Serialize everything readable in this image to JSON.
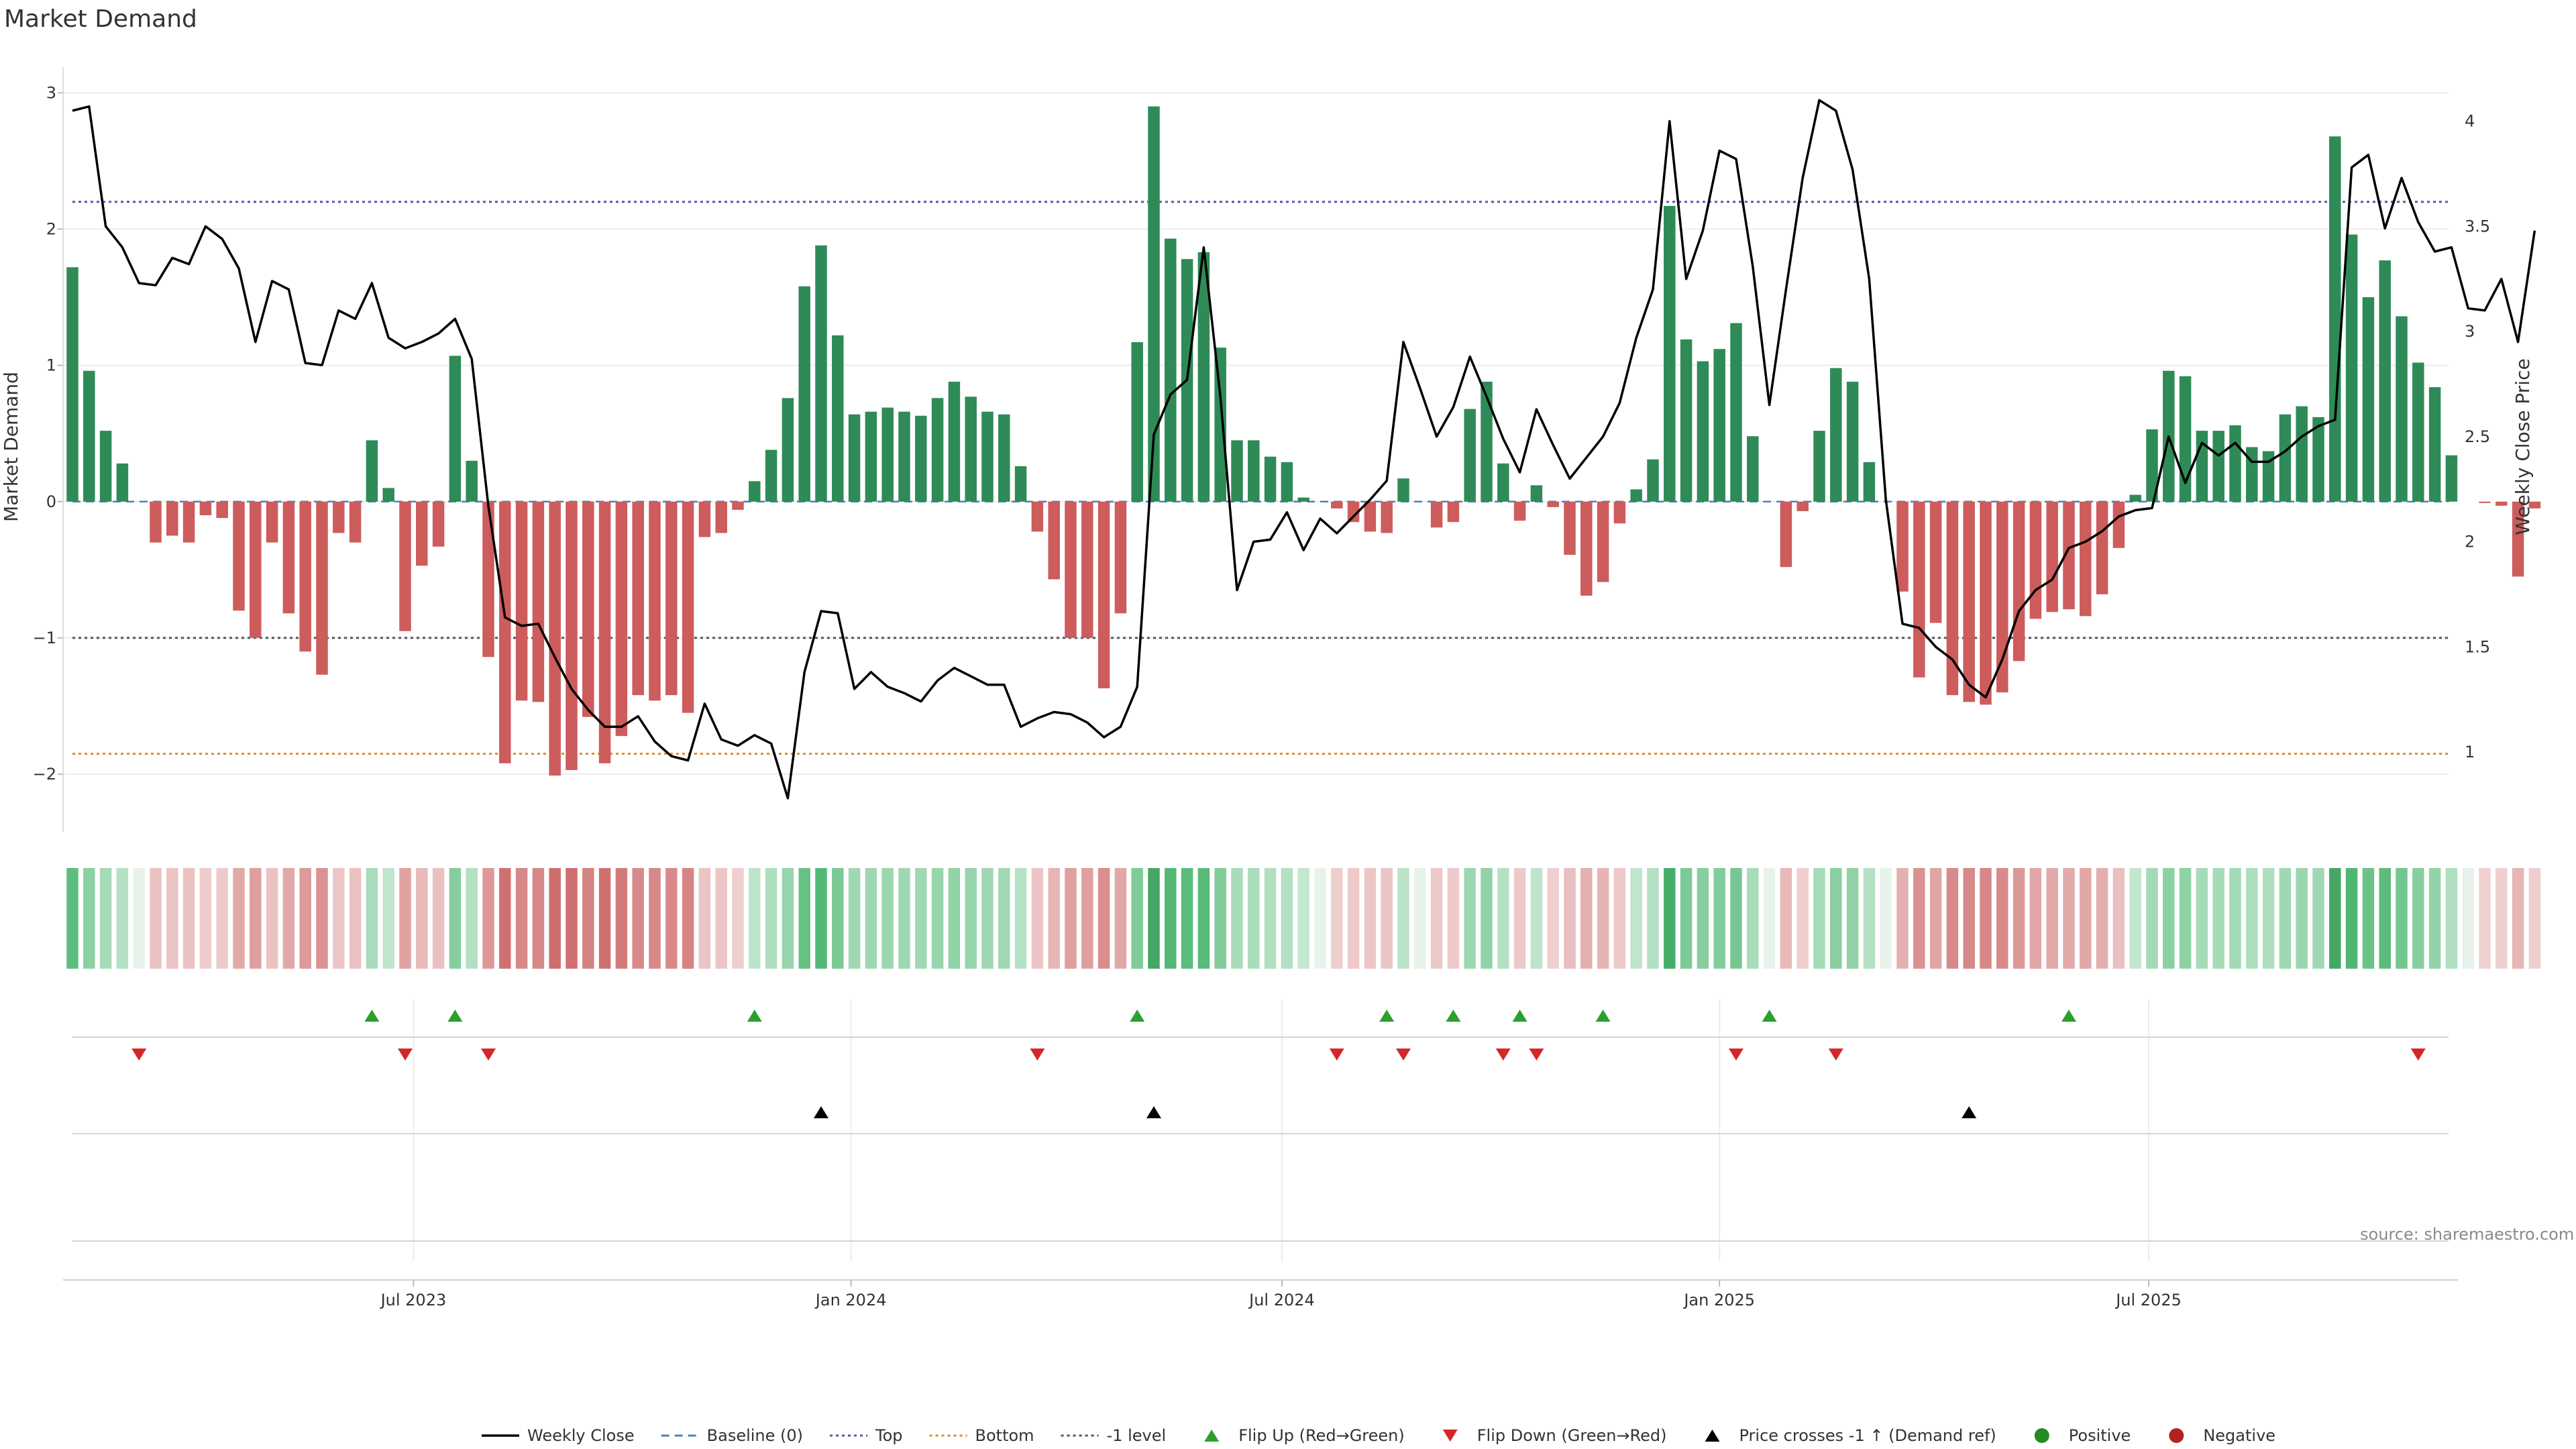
{
  "title": "Market Demand",
  "source": "source: sharemaestro.com",
  "colors": {
    "positive_bar": "#2e8b57",
    "negative_bar": "#cd5c5c",
    "price_line": "#000000",
    "top_line": "#5555aa",
    "bottom_line": "#e08a2a",
    "minus1_line": "#555555",
    "flip_up": "#2ca02c",
    "flip_down": "#d62728",
    "cross_marker": "#000000",
    "positive_dot": "#228b22",
    "negative_dot": "#b22222"
  },
  "chart_data": {
    "type": "bar",
    "title": "Market Demand",
    "ylabel": "Market Demand",
    "y2label": "Weekly Close Price",
    "ylim": [
      -2.3,
      3.1
    ],
    "y2lim": [
      0.7,
      4.2
    ],
    "yticks": [
      {
        "v": -2,
        "label": "−2"
      },
      {
        "v": -1,
        "label": "−1"
      },
      {
        "v": 0,
        "label": "0"
      },
      {
        "v": 1,
        "label": "1"
      },
      {
        "v": 2,
        "label": "2"
      },
      {
        "v": 3,
        "label": "3"
      }
    ],
    "y2ticks": [
      {
        "v": 1,
        "label": "1"
      },
      {
        "v": 1.5,
        "label": "1.5"
      },
      {
        "v": 2,
        "label": "2"
      },
      {
        "v": 2.5,
        "label": "2.5"
      },
      {
        "v": 3,
        "label": "3"
      },
      {
        "v": 3.5,
        "label": "3.5"
      },
      {
        "v": 4,
        "label": "4"
      }
    ],
    "xticks": [
      {
        "week": 20.5,
        "label": "Jul 2023"
      },
      {
        "week": 46.8,
        "label": "Jan 2024"
      },
      {
        "week": 72.7,
        "label": "Jul 2024"
      },
      {
        "week": 99,
        "label": "Jan 2025"
      },
      {
        "week": 124.8,
        "label": "Jul 2025"
      }
    ],
    "reference_lines": {
      "baseline": 0,
      "top": 2.2,
      "bottom": -1.85,
      "minus1": -1
    },
    "demand": [
      1.72,
      0.96,
      0.52,
      0.28,
      0,
      -0.3,
      -0.25,
      -0.3,
      -0.1,
      -0.12,
      -0.8,
      -1,
      -0.3,
      -0.82,
      -1.1,
      -1.27,
      -0.23,
      -0.3,
      0.45,
      0.1,
      -0.95,
      -0.47,
      -0.33,
      1.07,
      0.3,
      -1.14,
      -1.92,
      -1.46,
      -1.47,
      -2.01,
      -1.97,
      -1.58,
      -1.92,
      -1.72,
      -1.42,
      -1.46,
      -1.42,
      -1.55,
      -0.26,
      -0.23,
      -0.06,
      0.15,
      0.38,
      0.76,
      1.58,
      1.88,
      1.22,
      0.64,
      0.66,
      0.69,
      0.66,
      0.63,
      0.76,
      0.88,
      0.77,
      0.66,
      0.64,
      0.26,
      -0.22,
      -0.57,
      -1,
      -1,
      -1.37,
      -0.82,
      1.17,
      2.9,
      1.93,
      1.78,
      1.83,
      1.13,
      0.45,
      0.45,
      0.33,
      0.29,
      0.03,
      0,
      -0.05,
      -0.15,
      -0.22,
      -0.23,
      0.17,
      0,
      -0.19,
      -0.15,
      0.68,
      0.88,
      0.28,
      -0.14,
      0.12,
      -0.04,
      -0.39,
      -0.69,
      -0.59,
      -0.16,
      0.09,
      0.31,
      2.17,
      1.19,
      1.03,
      1.12,
      1.31,
      0.48,
      0,
      -0.48,
      -0.07,
      0.52,
      0.98,
      0.88,
      0.29,
      0,
      -0.66,
      -1.29,
      -0.89,
      -1.42,
      -1.47,
      -1.49,
      -1.4,
      -1.17,
      -0.86,
      -0.81,
      -0.79,
      -0.84,
      -0.68,
      -0.34,
      0.05,
      0.53,
      0.96,
      0.92,
      0.52,
      0.52,
      0.56,
      0.4,
      0.37,
      0.64,
      0.7,
      0.62,
      2.68,
      1.96,
      1.5,
      1.77,
      1.36,
      1.02,
      0.84,
      0.34,
      0,
      -0.01,
      -0.03,
      -0.55,
      -0.05
    ],
    "price": [
      4.05,
      4.07,
      3.5,
      3.4,
      3.23,
      3.22,
      3.35,
      3.32,
      3.5,
      3.44,
      3.3,
      2.95,
      3.24,
      3.2,
      2.85,
      2.84,
      3.1,
      3.06,
      3.23,
      2.97,
      2.92,
      2.95,
      2.99,
      3.06,
      2.87,
      2.17,
      1.64,
      1.6,
      1.61,
      1.45,
      1.3,
      1.2,
      1.12,
      1.12,
      1.17,
      1.05,
      0.98,
      0.96,
      1.23,
      1.06,
      1.03,
      1.08,
      1.04,
      0.78,
      1.38,
      1.67,
      1.66,
      1.3,
      1.38,
      1.31,
      1.28,
      1.24,
      1.34,
      1.4,
      1.36,
      1.32,
      1.32,
      1.12,
      1.16,
      1.19,
      1.18,
      1.14,
      1.07,
      1.12,
      1.31,
      2.51,
      2.7,
      2.77,
      3.4,
      2.69,
      1.77,
      2,
      2.01,
      2.14,
      1.96,
      2.11,
      2.04,
      2.12,
      2.2,
      2.29,
      2.95,
      2.73,
      2.5,
      2.64,
      2.88,
      2.69,
      2.49,
      2.33,
      2.63,
      2.46,
      2.3,
      2.4,
      2.5,
      2.66,
      2.97,
      3.2,
      4.0,
      3.25,
      3.48,
      3.86,
      3.82,
      3.31,
      2.65,
      3.2,
      3.73,
      4.1,
      4.05,
      3.77,
      3.25,
      2.2,
      1.61,
      1.59,
      1.5,
      1.44,
      1.32,
      1.26,
      1.44,
      1.67,
      1.77,
      1.82,
      1.97,
      2,
      2.05,
      2.12,
      2.15,
      2.16,
      2.5,
      2.28,
      2.47,
      2.41,
      2.47,
      2.38,
      2.38,
      2.43,
      2.5,
      2.55,
      2.58,
      3.78,
      3.84,
      3.49,
      3.73,
      3.52,
      3.38,
      3.4,
      3.11,
      3.1,
      3.25,
      2.95,
      3.48
    ],
    "flip_up_weeks": [
      18,
      23,
      41,
      64,
      79,
      83,
      87,
      92,
      102,
      120
    ],
    "flip_down_weeks": [
      4,
      20,
      25,
      58,
      76,
      80,
      86,
      88,
      100,
      106,
      141
    ],
    "price_cross_weeks": [
      45,
      65,
      114
    ],
    "legend": [
      {
        "label": "Weekly Close",
        "kind": "line-solid"
      },
      {
        "label": "Baseline (0)",
        "kind": "line-dash-blue"
      },
      {
        "label": "Top",
        "kind": "line-dot-purple"
      },
      {
        "label": "Bottom",
        "kind": "line-dot-orange"
      },
      {
        "label": "-1 level",
        "kind": "line-dot-gray"
      },
      {
        "label": "Flip Up (Red→Green)",
        "kind": "tri-up-green"
      },
      {
        "label": "Flip Down (Green→Red)",
        "kind": "tri-down-red"
      },
      {
        "label": "Price crosses -1 ↑ (Demand ref)",
        "kind": "tri-up-black"
      },
      {
        "label": "Positive",
        "kind": "dot-green"
      },
      {
        "label": "Negative",
        "kind": "dot-red"
      }
    ]
  }
}
